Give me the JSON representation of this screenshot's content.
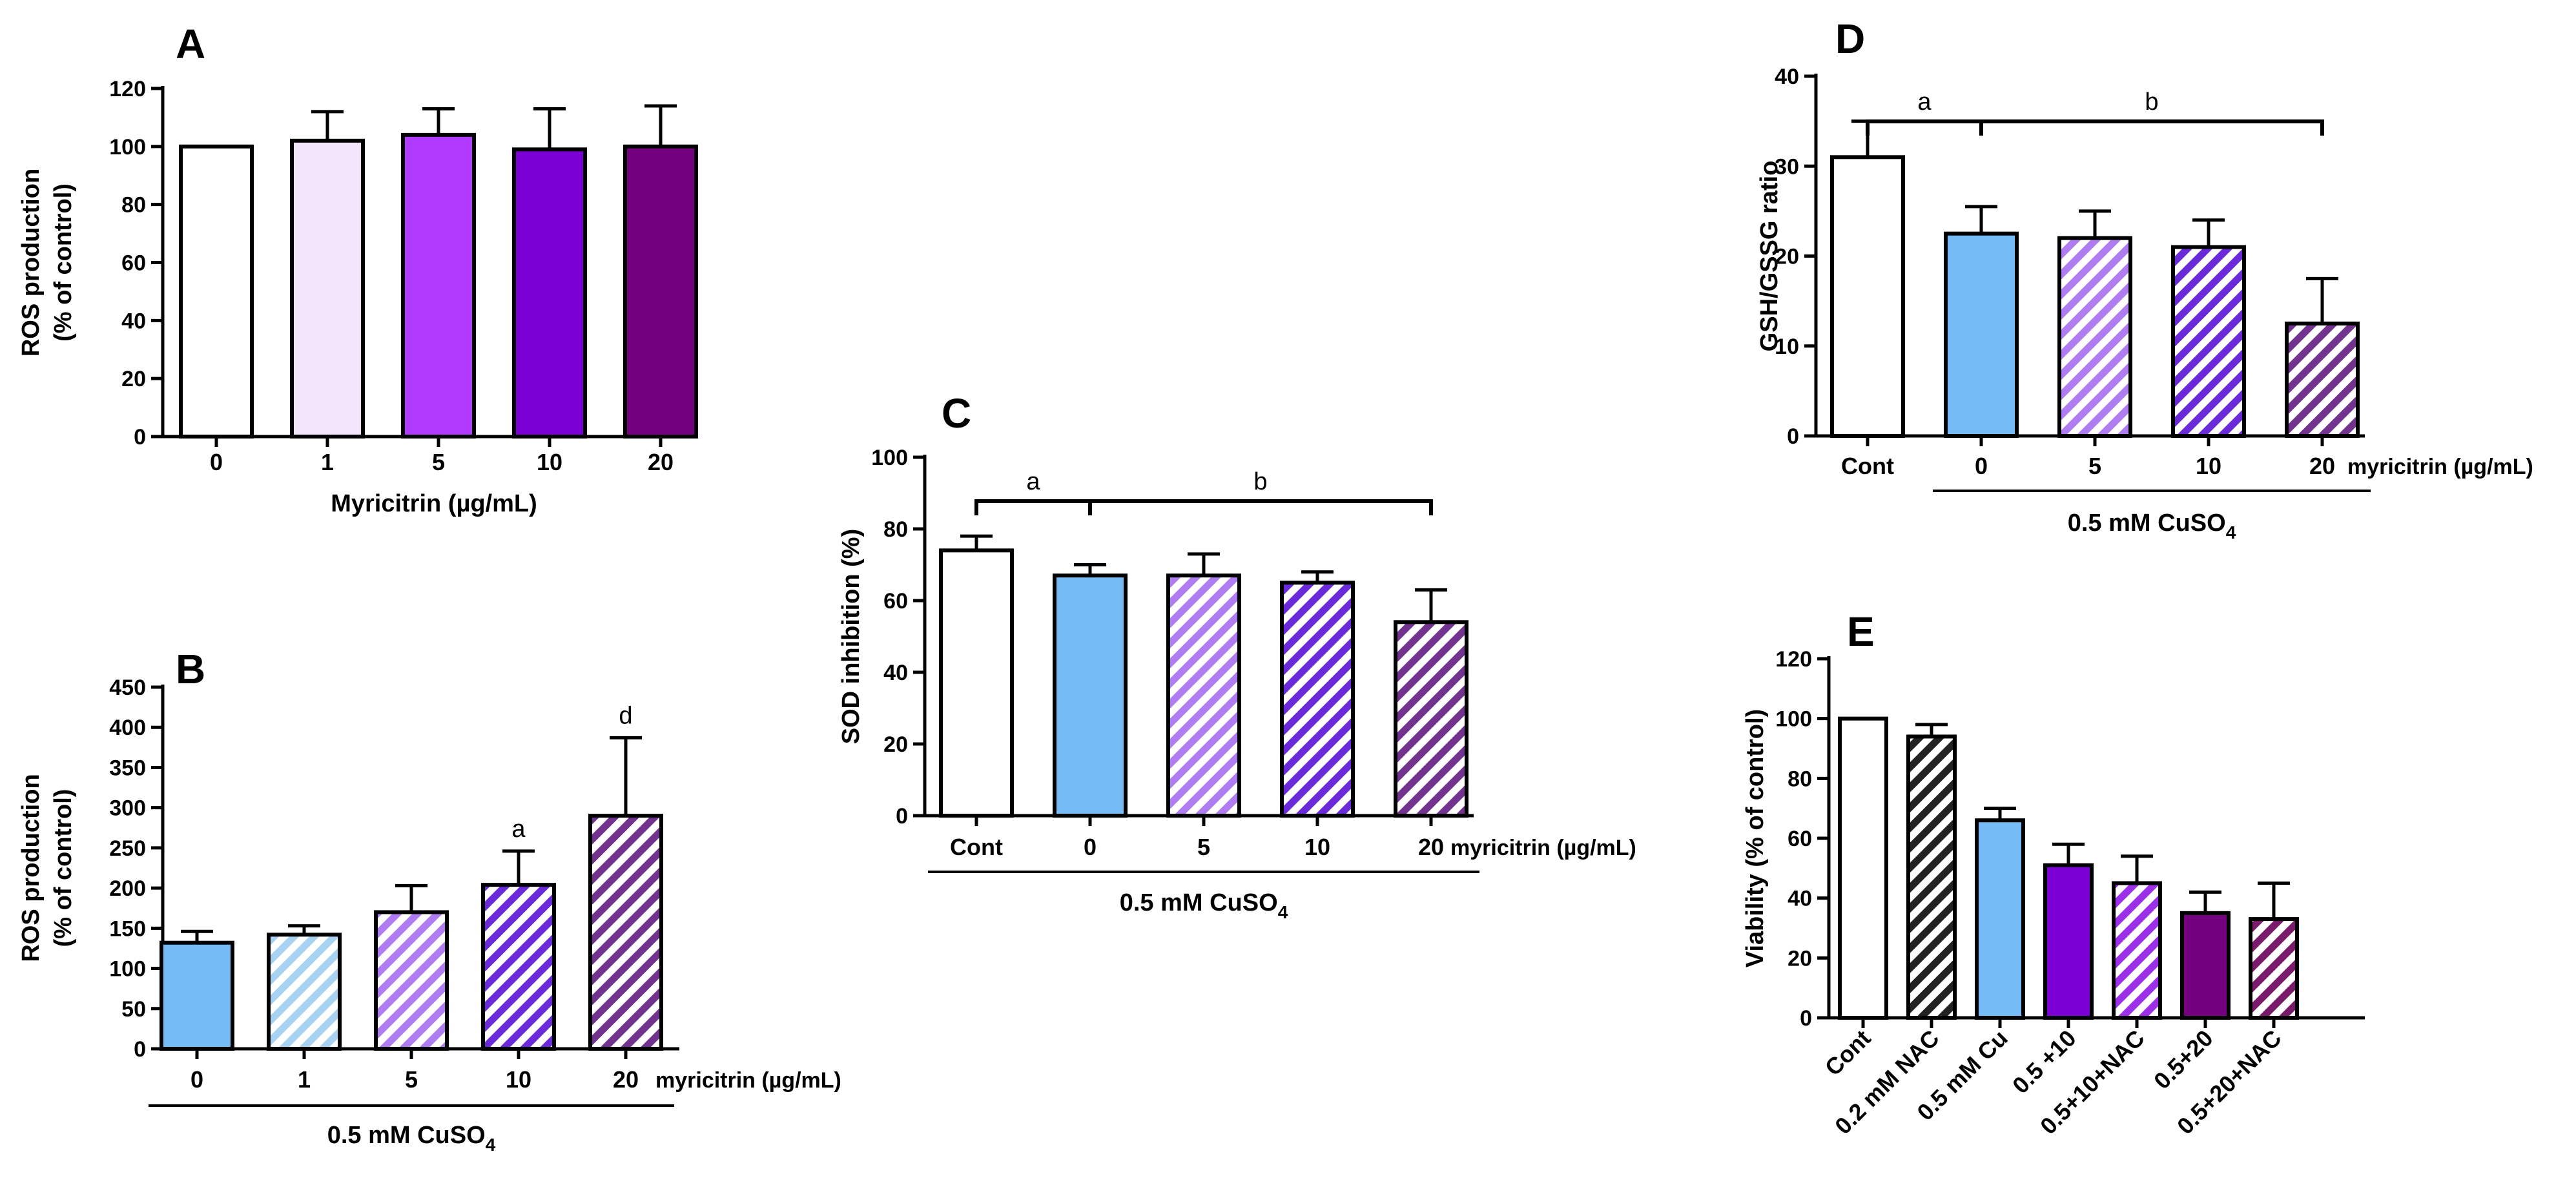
{
  "chart_data": [
    {
      "id": "A",
      "type": "bar",
      "panel_label": "A",
      "title": "",
      "xlabel": "Myricitrin (µg/mL)",
      "ylabel": [
        "ROS production",
        "(% of control)"
      ],
      "categories": [
        "0",
        "1",
        "5",
        "10",
        "20"
      ],
      "values": [
        100,
        102,
        104,
        99,
        100
      ],
      "errors": [
        0,
        10,
        9,
        14,
        14
      ],
      "colors": [
        "#ffffff",
        "#f3e5fb",
        "#b03bff",
        "#7a00d6",
        "#72007f"
      ],
      "patterns": [
        "solid",
        "solid",
        "solid",
        "solid",
        "solid"
      ],
      "ylim": [
        0,
        120
      ],
      "yticks": [
        0,
        20,
        40,
        60,
        80,
        100,
        120
      ],
      "axis_end_label": "",
      "group_label": null,
      "brackets": [],
      "annotations": []
    },
    {
      "id": "B",
      "type": "bar",
      "panel_label": "B",
      "title": "",
      "xlabel": "",
      "ylabel": [
        "ROS production",
        "(% of control)"
      ],
      "categories": [
        "0",
        "1",
        "5",
        "10",
        "20"
      ],
      "values": [
        132,
        142,
        170,
        204,
        290
      ],
      "errors": [
        14,
        11,
        33,
        42,
        97
      ],
      "colors": [
        "#75bbf5",
        "#ffffff",
        "#ffffff",
        "#ffffff",
        "#ffffff"
      ],
      "stripe_colors": [
        null,
        "#a8d2f2",
        "#b07cf2",
        "#6a2ad9",
        "#71338d"
      ],
      "bg_colors": [
        null,
        "#ffffff",
        "#ffffff",
        "#ffffff",
        "#ffffff"
      ],
      "patterns": [
        "solid",
        "hatch",
        "hatch",
        "hatch",
        "hatch"
      ],
      "ylim": [
        0,
        450
      ],
      "yticks": [
        0,
        50,
        100,
        150,
        200,
        250,
        300,
        350,
        400,
        450
      ],
      "axis_end_label": "myricitrin (µg/mL)",
      "group_label": {
        "text": "0.5 mM CuSO",
        "sub": "4",
        "from": 0,
        "to": 4
      },
      "brackets": [],
      "annotations": [
        {
          "bar": 3,
          "text": "a"
        },
        {
          "bar": 4,
          "text": "d"
        }
      ]
    },
    {
      "id": "C",
      "type": "bar",
      "panel_label": "C",
      "title": "",
      "xlabel": "",
      "ylabel": [
        "SOD inhibition (%)"
      ],
      "categories": [
        "Cont",
        "0",
        "5",
        "10",
        "20"
      ],
      "values": [
        74,
        67,
        67,
        65,
        54
      ],
      "errors": [
        4,
        3,
        6,
        3,
        9
      ],
      "colors": [
        "#ffffff",
        "#75bbf5",
        "#ffffff",
        "#ffffff",
        "#ffffff"
      ],
      "stripe_colors": [
        null,
        null,
        "#b07cf2",
        "#6a2ad9",
        "#71338d"
      ],
      "bg_colors": [
        null,
        null,
        "#ffffff",
        "#ffffff",
        "#ffffff"
      ],
      "patterns": [
        "solid",
        "solid",
        "hatch",
        "hatch",
        "hatch"
      ],
      "ylim": [
        0,
        100
      ],
      "yticks": [
        0,
        20,
        40,
        60,
        80,
        100
      ],
      "axis_end_label": "myricitrin (µg/mL)",
      "group_label": {
        "text": "0.5 mM CuSO",
        "sub": "4",
        "from": 0,
        "to": 4
      },
      "brackets": [
        {
          "from": 0,
          "to": 1,
          "label": "a"
        },
        {
          "from": 1,
          "to": 4,
          "label": "b"
        }
      ],
      "annotations": []
    },
    {
      "id": "D",
      "type": "bar",
      "panel_label": "D",
      "title": "",
      "xlabel": "",
      "ylabel": [
        "GSH/GSSG ratio"
      ],
      "categories": [
        "Cont",
        "0",
        "5",
        "10",
        "20"
      ],
      "values": [
        31,
        22.5,
        22,
        21,
        12.5
      ],
      "errors": [
        4,
        3,
        3,
        3,
        5
      ],
      "colors": [
        "#ffffff",
        "#75bbf5",
        "#ffffff",
        "#ffffff",
        "#ffffff"
      ],
      "stripe_colors": [
        null,
        null,
        "#b07cf2",
        "#6a2ad9",
        "#71338d"
      ],
      "bg_colors": [
        null,
        null,
        "#ffffff",
        "#ffffff",
        "#ffffff"
      ],
      "patterns": [
        "solid",
        "solid",
        "hatch",
        "hatch",
        "hatch"
      ],
      "ylim": [
        0,
        40
      ],
      "yticks": [
        0,
        10,
        20,
        30,
        40
      ],
      "axis_end_label": "myricitrin (µg/mL)",
      "group_label": {
        "text": "0.5 mM CuSO",
        "sub": "4",
        "from": 1,
        "to": 4
      },
      "brackets": [
        {
          "from": 0,
          "to": 1,
          "label": "a"
        },
        {
          "from": 1,
          "to": 4,
          "label": "b"
        }
      ],
      "annotations": []
    },
    {
      "id": "E",
      "type": "bar",
      "panel_label": "E",
      "title": "",
      "xlabel": "",
      "ylabel": [
        "Viability (% of control)"
      ],
      "categories": [
        "Cont",
        "0.2 mM NAC",
        "0.5 mM Cu",
        "0.5 +10",
        "0.5+10+NAC",
        "0.5+20",
        "0.5+20+NAC"
      ],
      "values": [
        100,
        94,
        66,
        51,
        45,
        35,
        33
      ],
      "errors": [
        0,
        4,
        4,
        7,
        9,
        7,
        12
      ],
      "colors": [
        "#ffffff",
        "#ffffff",
        "#75bbf5",
        "#7a00d6",
        "#ffffff",
        "#72007f",
        "#ffffff"
      ],
      "stripe_colors": [
        null,
        "#222222",
        null,
        null,
        "#9b30e8",
        null,
        "#7a1a6a"
      ],
      "bg_colors": [
        null,
        "#ffffff",
        null,
        null,
        "#ffffff",
        null,
        "#ffffff"
      ],
      "patterns": [
        "solid",
        "hatch",
        "solid",
        "solid",
        "hatch",
        "solid",
        "hatch"
      ],
      "ylim": [
        0,
        120
      ],
      "yticks": [
        0,
        20,
        40,
        60,
        80,
        100,
        120
      ],
      "axis_end_label": "",
      "group_label": null,
      "brackets": [],
      "annotations": [],
      "rotate_labels": true
    }
  ]
}
